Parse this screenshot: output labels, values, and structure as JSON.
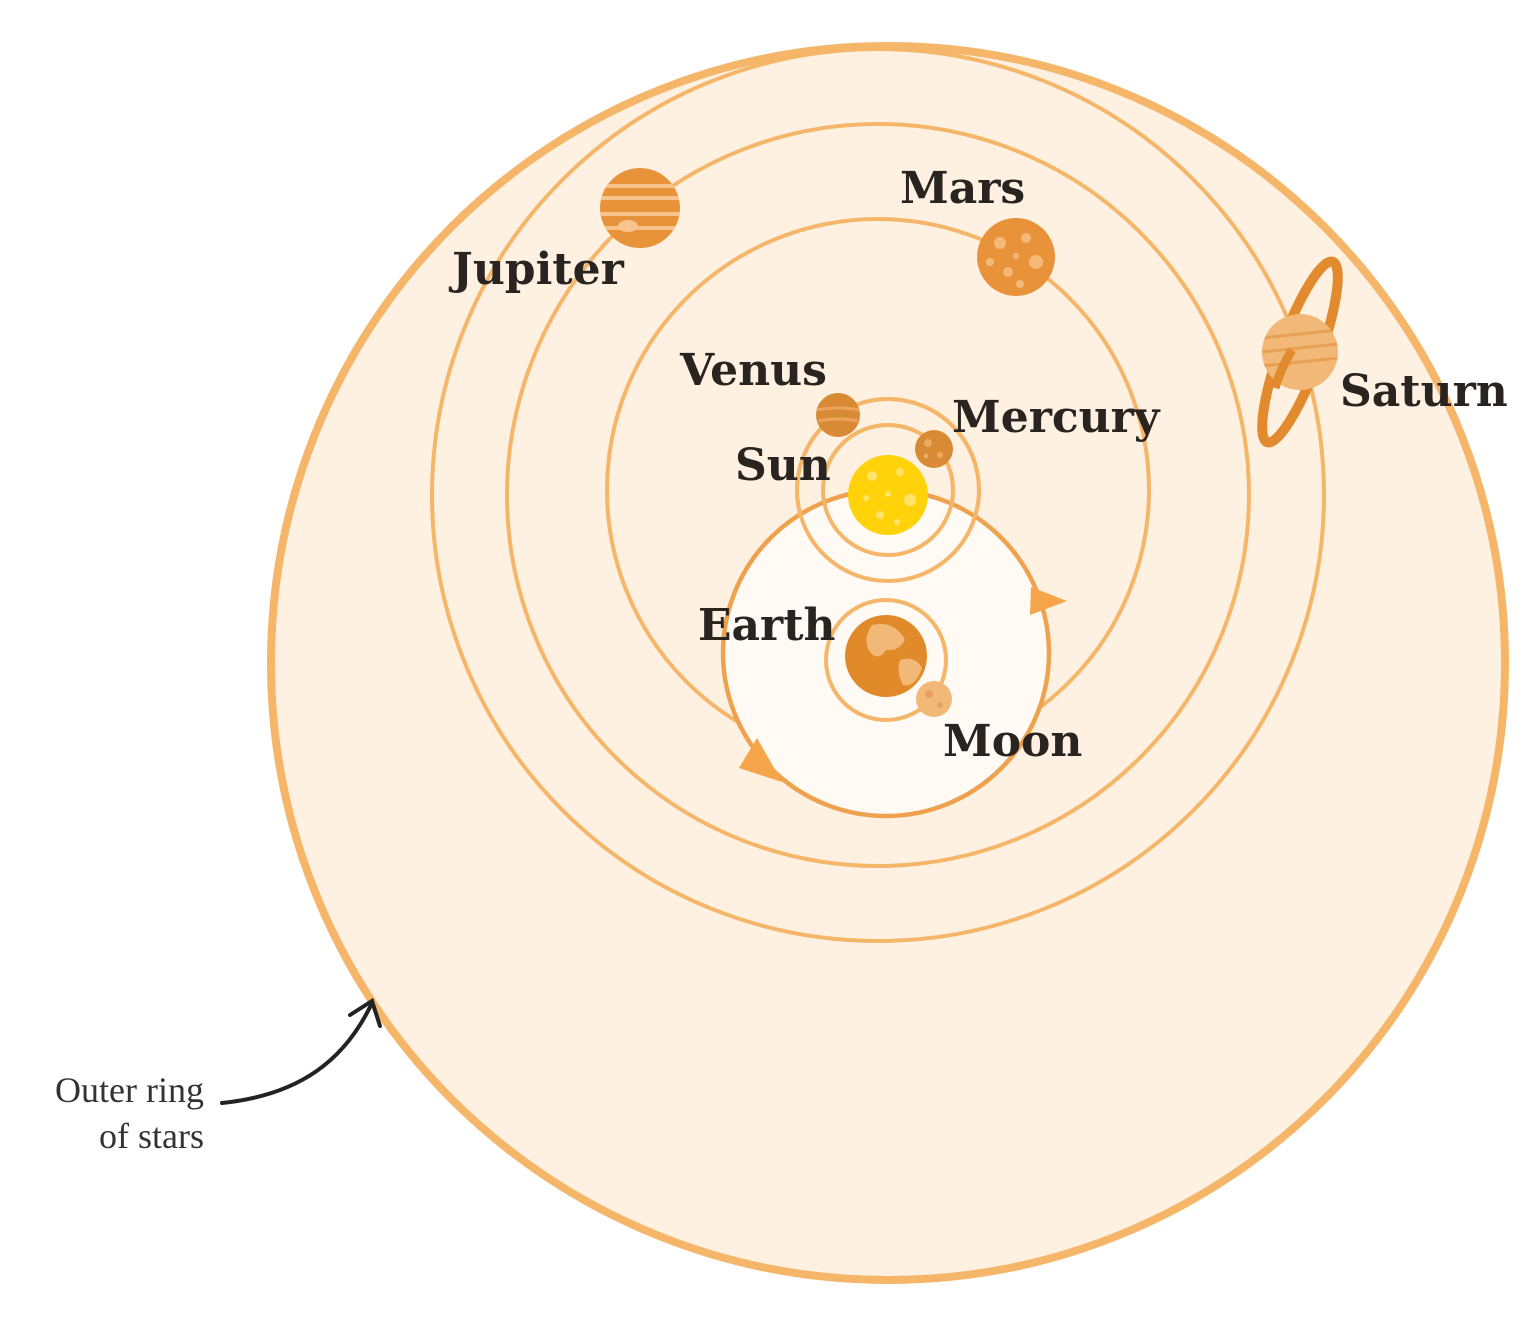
{
  "colors": {
    "orbit": "#f6b66a",
    "outer_fill": "#fff1e2",
    "outer_stroke": "#f6b66a",
    "deferent_stroke": "#eea24e",
    "deferent_fill": "#fffaf4",
    "arrow": "#f6a54a",
    "text": "#2a2420",
    "caption": "#333333",
    "sun": "#ffd20a",
    "planet": "#e8923a",
    "planet_light": "#f2b877"
  },
  "labels": {
    "jupiter": "Jupiter",
    "mars": "Mars",
    "saturn": "Saturn",
    "venus": "Venus",
    "mercury": "Mercury",
    "sun": "Sun",
    "earth": "Earth",
    "moon": "Moon"
  },
  "caption": {
    "line1": "Outer ring",
    "line2": "of stars"
  },
  "icons": {
    "sun": "sun-icon",
    "earth": "earth-icon",
    "moon": "moon-icon",
    "mercury": "mercury-icon",
    "venus": "venus-icon",
    "mars": "mars-icon",
    "jupiter": "jupiter-icon",
    "saturn": "saturn-icon"
  }
}
